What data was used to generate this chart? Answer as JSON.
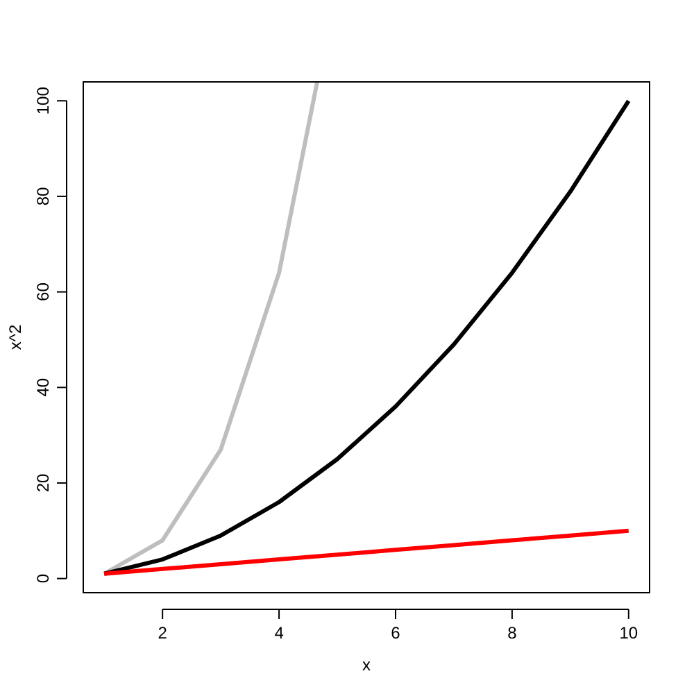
{
  "chart_data": {
    "type": "line",
    "xlabel": "x",
    "ylabel": "x^2",
    "x": [
      1,
      2,
      3,
      4,
      5,
      6,
      7,
      8,
      9,
      10
    ],
    "xlim": [
      0.64,
      10.36
    ],
    "ylim": [
      -2.96,
      103.96
    ],
    "xticks": [
      2,
      4,
      6,
      8,
      10
    ],
    "yticks": [
      0,
      20,
      40,
      60,
      80,
      100
    ],
    "series": [
      {
        "color": "#bebebe",
        "x": [
          1,
          2,
          3,
          4,
          4.655
        ],
        "values": [
          1,
          8,
          27,
          64,
          103.96
        ]
      },
      {
        "color": "#000000",
        "values": [
          1,
          4,
          9,
          16,
          25,
          36,
          49,
          64,
          81,
          100
        ]
      },
      {
        "color": "#ff0000",
        "values": [
          1,
          2,
          3,
          4,
          5,
          6,
          7,
          8,
          9,
          10
        ]
      }
    ]
  }
}
